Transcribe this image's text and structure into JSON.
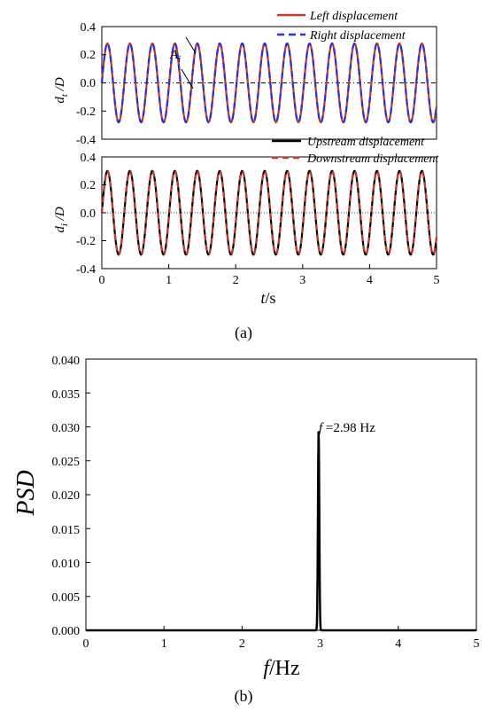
{
  "chart_data": [
    {
      "panel_label": "(a)",
      "type": "line",
      "xlabel_italic": "t",
      "xlabel_unit": "/s",
      "xlim": [
        0,
        5
      ],
      "x_ticks": [
        "0",
        "1",
        "2",
        "3",
        "4",
        "5"
      ],
      "subplots": [
        {
          "ylabel_var": "d",
          "ylabel_sub": "t",
          "ylabel_denom": "/D",
          "ylim": [
            -0.4,
            0.4
          ],
          "y_ticks": [
            "-0.4",
            "-0.2",
            "0.0",
            "0.2",
            "0.4"
          ],
          "zero_line": "dash-dot",
          "annotation_base": "A",
          "annotation_sub": "i",
          "series": [
            {
              "name": "Left displacement",
              "color": "#c0392b",
              "style": "solid",
              "amplitude": 0.28,
              "frequency_hz": 2.98,
              "phase": 0
            },
            {
              "name": "Right displacement",
              "color": "#2f2fd8",
              "style": "dashed",
              "amplitude": 0.28,
              "frequency_hz": 2.98,
              "phase": 0
            }
          ]
        },
        {
          "ylabel_var": "d",
          "ylabel_sub": "i",
          "ylabel_denom": "/D",
          "ylim": [
            -0.4,
            0.4
          ],
          "y_ticks": [
            "-0.4",
            "-0.2",
            "0.0",
            "0.2",
            "0.4"
          ],
          "zero_line": "dotted",
          "series": [
            {
              "name": "Upstream displacement",
              "color": "#000000",
              "style": "solid",
              "amplitude": 0.3,
              "frequency_hz": 2.98,
              "phase": 0
            },
            {
              "name": "Downstream displacement",
              "color": "#c0392b",
              "style": "dashed",
              "amplitude": 0.3,
              "frequency_hz": 2.98,
              "phase": 0
            }
          ]
        }
      ]
    },
    {
      "panel_label": "(b)",
      "type": "line",
      "xlabel_italic": "f",
      "xlabel_unit": "/Hz",
      "ylabel": "PSD",
      "xlim": [
        0,
        5
      ],
      "ylim": [
        0,
        0.04
      ],
      "x_ticks": [
        "0",
        "1",
        "2",
        "3",
        "4",
        "5"
      ],
      "y_ticks": [
        "0.000",
        "0.005",
        "0.010",
        "0.015",
        "0.020",
        "0.025",
        "0.030",
        "0.035",
        "0.040"
      ],
      "peak_frequency": 2.98,
      "peak_value": 0.0295,
      "annotation_var": "f",
      "annotation_value": " =2.98 Hz",
      "series": [
        {
          "color": "#000000",
          "style": "solid"
        }
      ]
    }
  ]
}
